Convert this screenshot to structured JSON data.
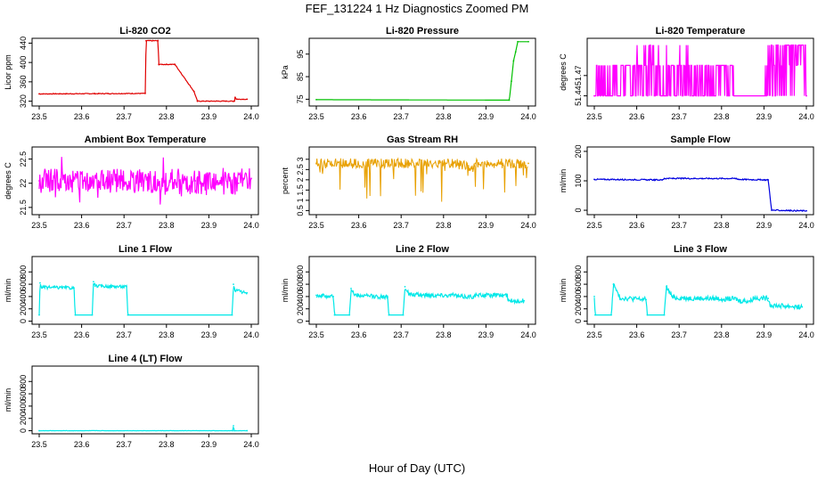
{
  "title": "FEF_131224  1 Hz Diagnostics Zoomed PM",
  "xlabel": "Hour of Day (UTC)",
  "colors": {
    "red": "#e00000",
    "green": "#00c000",
    "magenta": "#ff00ff",
    "orange": "#e8a000",
    "blue": "#0000e0",
    "cyan": "#00e8e8"
  },
  "chart_data": [
    {
      "type": "line",
      "title": "Li-820 CO2",
      "ylabel": "Licor ppm",
      "color": "red",
      "xlim": [
        23.5,
        24.0
      ],
      "ylim": [
        310,
        450
      ],
      "xticks": [
        "23.5",
        "23.6",
        "23.7",
        "23.8",
        "23.9",
        "24.0"
      ],
      "yticks": [
        "320",
        "360",
        "400",
        "440"
      ],
      "x": [
        23.5,
        23.75,
        23.752,
        23.78,
        23.782,
        23.82,
        23.865,
        23.873,
        23.96,
        23.962,
        23.965,
        23.99
      ],
      "values": [
        335,
        336,
        445,
        445,
        396,
        396,
        340,
        320,
        320,
        328,
        324,
        324
      ],
      "noise": 0.8
    },
    {
      "type": "line",
      "title": "Li-820 Pressure",
      "ylabel": "kPa",
      "color": "green",
      "xlim": [
        23.5,
        24.0
      ],
      "ylim": [
        72,
        102
      ],
      "xticks": [
        "23.5",
        "23.6",
        "23.7",
        "23.8",
        "23.9",
        "24.0"
      ],
      "yticks": [
        "75",
        "85",
        "95"
      ],
      "x": [
        23.5,
        23.955,
        23.96,
        23.965,
        23.97,
        23.975,
        24.0
      ],
      "values": [
        74.8,
        74.6,
        83,
        92,
        96,
        100.5,
        100.5
      ],
      "noise": 0
    },
    {
      "type": "line",
      "title": "Li-820 Temperature",
      "ylabel": "degrees C",
      "color": "magenta",
      "xlim": [
        23.5,
        24.0
      ],
      "ylim": [
        51.425,
        51.525
      ],
      "xticks": [
        "23.5",
        "23.6",
        "23.7",
        "23.8",
        "23.9",
        "24.0"
      ],
      "yticks": [
        "51.44",
        "51.47"
      ],
      "x": [
        23.5,
        24.0
      ],
      "values": [
        51.44,
        51.44
      ],
      "noise": 0
    },
    {
      "type": "line",
      "title": "Ambient Box Temperature",
      "ylabel": "degrees C",
      "color": "magenta",
      "xlim": [
        23.5,
        24.0
      ],
      "ylim": [
        21.35,
        22.75
      ],
      "xticks": [
        "23.5",
        "23.6",
        "23.7",
        "23.8",
        "23.9",
        "24.0"
      ],
      "yticks": [
        "21.5",
        "22",
        "22.5"
      ],
      "x": [
        23.5,
        23.83,
        23.835,
        23.868,
        23.875,
        23.97,
        23.98,
        24.0
      ],
      "values": [
        22.05,
        22.05,
        21.9,
        22.05,
        22.0,
        22.0,
        22.1,
        22.1
      ],
      "noise": 0.25
    },
    {
      "type": "line",
      "title": "Gas Stream RH",
      "ylabel": "percent",
      "color": "orange",
      "xlim": [
        23.5,
        24.0
      ],
      "ylim": [
        0.3,
        3.6
      ],
      "xticks": [
        "23.5",
        "23.6",
        "23.7",
        "23.8",
        "23.9",
        "24.0"
      ],
      "yticks": [
        "0.5",
        "1",
        "1.5",
        "2",
        "2.5",
        "3"
      ],
      "x": [
        23.5,
        23.835,
        23.87,
        23.875,
        24.0
      ],
      "values": [
        2.8,
        2.8,
        2.55,
        2.8,
        2.8
      ],
      "noise": 0.25
    },
    {
      "type": "line",
      "title": "Sample Flow",
      "ylabel": "ml/min",
      "color": "blue",
      "xlim": [
        23.5,
        24.0
      ],
      "ylim": [
        -15,
        215
      ],
      "xticks": [
        "23.5",
        "23.6",
        "23.7",
        "23.8",
        "23.9",
        "24.0"
      ],
      "yticks": [
        "0",
        "100",
        "200"
      ],
      "x": [
        23.5,
        23.66,
        23.665,
        23.835,
        23.84,
        23.91,
        23.918,
        24.0
      ],
      "values": [
        105,
        103,
        108,
        108,
        105,
        103,
        0,
        -2
      ],
      "noise": 2
    },
    {
      "type": "line",
      "title": "Line 1 Flow",
      "ylabel": "ml/min",
      "color": "cyan",
      "xlim": [
        23.5,
        24.0
      ],
      "ylim": [
        -50,
        1050
      ],
      "xticks": [
        "23.5",
        "23.6",
        "23.7",
        "23.8",
        "23.9",
        "24.0"
      ],
      "yticks": [
        "0",
        "200",
        "400",
        "600",
        "800"
      ],
      "x": [
        23.5,
        23.502,
        23.506,
        23.582,
        23.585,
        23.625,
        23.628,
        23.632,
        23.706,
        23.709,
        23.955,
        23.958,
        23.962,
        23.99
      ],
      "values": [
        100,
        620,
        550,
        540,
        100,
        100,
        640,
        570,
        560,
        100,
        100,
        600,
        500,
        460
      ],
      "noise": 25
    },
    {
      "type": "line",
      "title": "Line 2 Flow",
      "ylabel": "ml/min",
      "color": "cyan",
      "xlim": [
        23.5,
        24.0
      ],
      "ylim": [
        -50,
        1050
      ],
      "xticks": [
        "23.5",
        "23.6",
        "23.7",
        "23.8",
        "23.9",
        "24.0"
      ],
      "yticks": [
        "0",
        "200",
        "400",
        "600",
        "800"
      ],
      "x": [
        23.5,
        23.54,
        23.543,
        23.578,
        23.582,
        23.59,
        23.668,
        23.671,
        23.705,
        23.709,
        23.72,
        23.83,
        23.835,
        23.87,
        23.875,
        23.95,
        23.953,
        23.99
      ],
      "values": [
        420,
        400,
        100,
        100,
        530,
        420,
        390,
        100,
        100,
        560,
        430,
        420,
        400,
        400,
        420,
        420,
        330,
        330
      ],
      "noise": 35
    },
    {
      "type": "line",
      "title": "Line 3 Flow",
      "ylabel": "ml/min",
      "color": "cyan",
      "xlim": [
        23.5,
        24.0
      ],
      "ylim": [
        -50,
        1050
      ],
      "xticks": [
        "23.5",
        "23.6",
        "23.7",
        "23.8",
        "23.9",
        "24.0"
      ],
      "yticks": [
        "0",
        "200",
        "400",
        "600",
        "800"
      ],
      "x": [
        23.5,
        23.502,
        23.54,
        23.545,
        23.56,
        23.622,
        23.625,
        23.665,
        23.67,
        23.685,
        23.835,
        23.84,
        23.87,
        23.875,
        23.91,
        23.915,
        23.99
      ],
      "values": [
        400,
        100,
        100,
        600,
        380,
        350,
        100,
        100,
        560,
        380,
        360,
        330,
        330,
        380,
        370,
        260,
        230
      ],
      "noise": 40
    },
    {
      "type": "line",
      "title": "Line 4 (LT) Flow",
      "ylabel": "ml/min",
      "color": "cyan",
      "xlim": [
        23.5,
        24.0
      ],
      "ylim": [
        -50,
        1050
      ],
      "xticks": [
        "23.5",
        "23.6",
        "23.7",
        "23.8",
        "23.9",
        "24.0"
      ],
      "yticks": [
        "0",
        "200",
        "400",
        "600",
        "800"
      ],
      "x": [
        23.5,
        23.956,
        23.958,
        23.96,
        23.99
      ],
      "values": [
        0,
        0,
        80,
        0,
        0
      ],
      "noise": 2
    }
  ]
}
